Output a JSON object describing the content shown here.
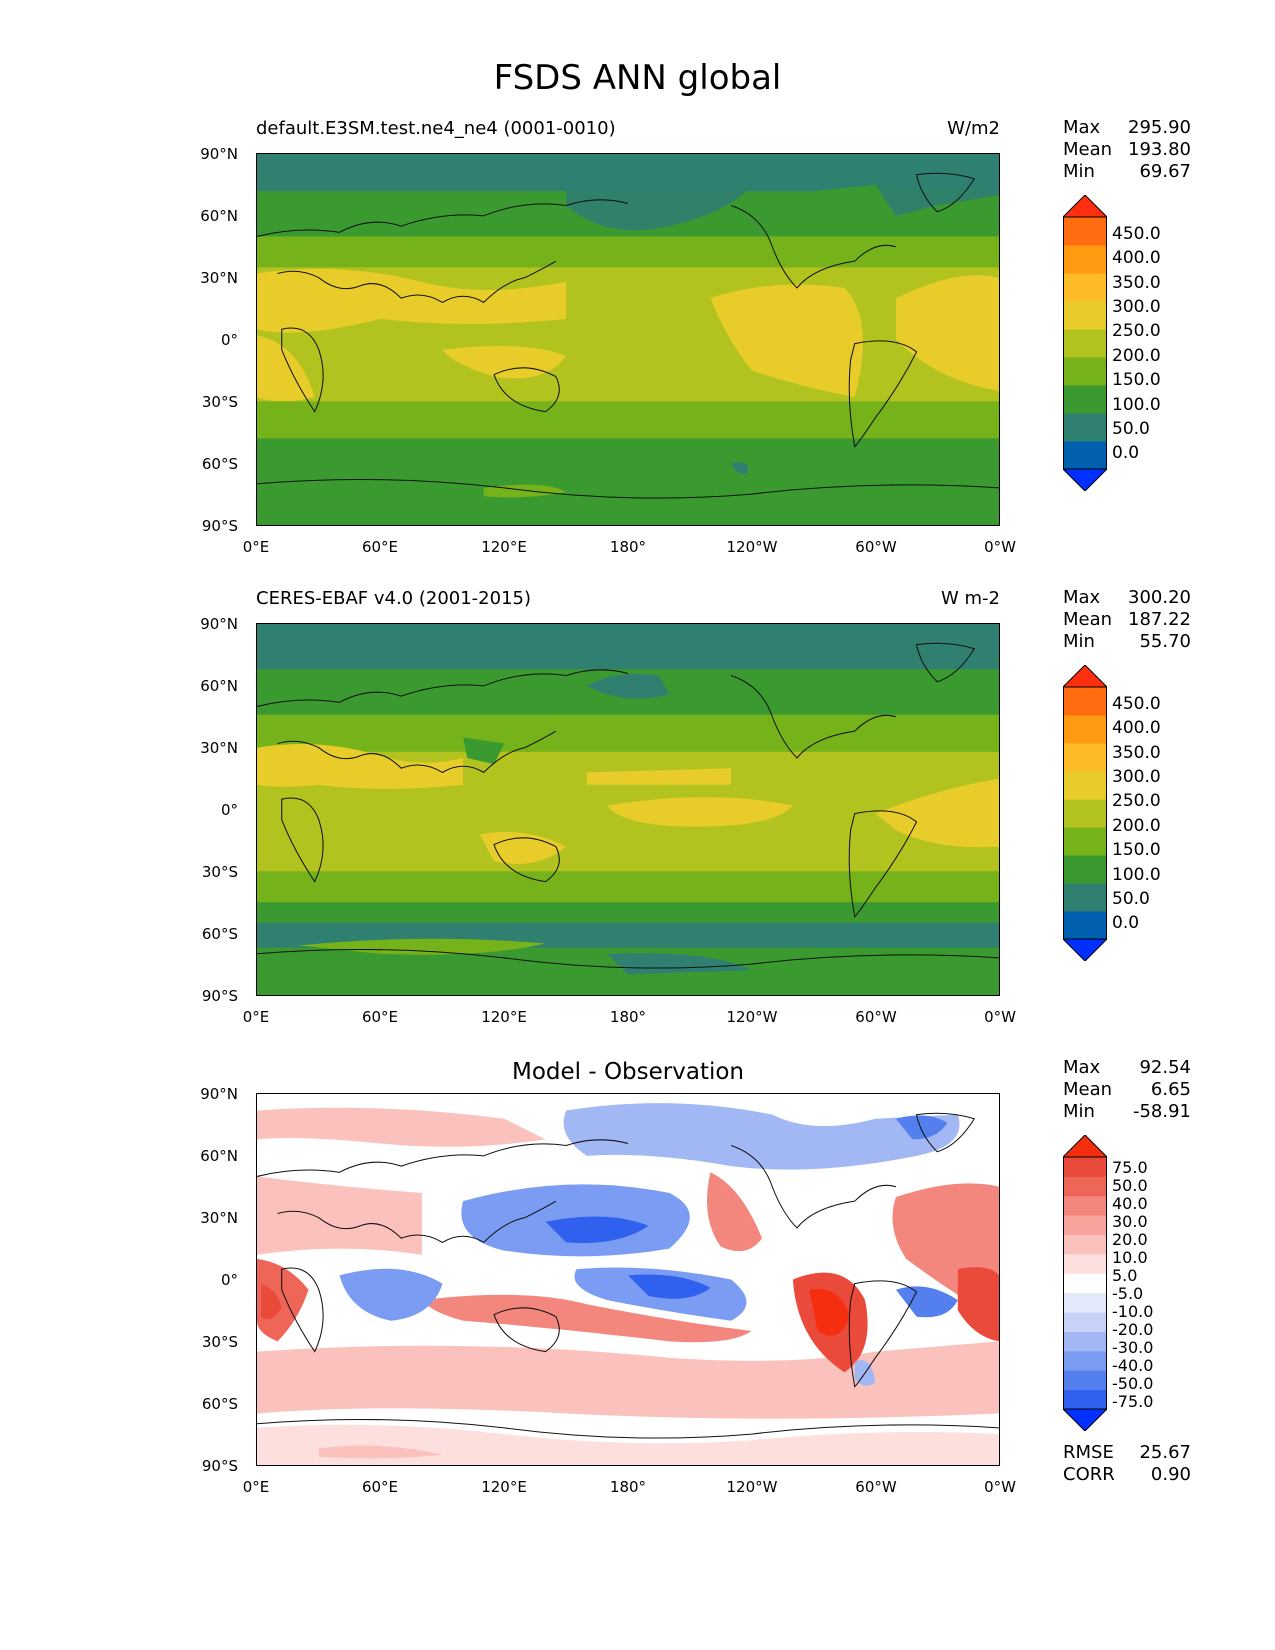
{
  "title": "FSDS ANN global",
  "lat_ticks": [
    "90°N",
    "60°N",
    "30°N",
    "0°",
    "30°S",
    "60°S",
    "90°S"
  ],
  "lon_ticks": [
    "0°E",
    "60°E",
    "120°E",
    "180°",
    "120°W",
    "60°W",
    "0°W"
  ],
  "colors": {
    "abs_levels": [
      "#0030ff",
      "#0060b0",
      "#2f8070",
      "#3a9a30",
      "#76b21a",
      "#b2c21e",
      "#e8cd2a",
      "#fdbb28",
      "#ff9b10",
      "#ff6d10",
      "#ff3010"
    ],
    "diff_levels": [
      "#0030ff",
      "#3060ee",
      "#5380ee",
      "#7a9cf2",
      "#a2b8f5",
      "#c6d2f8",
      "#e3e9fb",
      "#ffffff",
      "#fde0de",
      "#fbc2bd",
      "#f8a49d",
      "#f3867d",
      "#ee6657",
      "#ea4a3a",
      "#f52e10"
    ]
  },
  "panels": [
    {
      "left_title": "default.E3SM.test.ne4_ne4 (0001-0010)",
      "right_title": "W/m2",
      "stats": {
        "max_label": "Max",
        "max": "295.90",
        "mean_label": "Mean",
        "mean": "193.80",
        "min_label": "Min",
        "min": "69.67"
      },
      "colorbar_labels": [
        "450.0",
        "400.0",
        "350.0",
        "300.0",
        "250.0",
        "200.0",
        "150.0",
        "100.0",
        "50.0",
        "0.0"
      ]
    },
    {
      "left_title": "CERES-EBAF v4.0 (2001-2015)",
      "right_title": "W m-2",
      "stats": {
        "max_label": "Max",
        "max": "300.20",
        "mean_label": "Mean",
        "mean": "187.22",
        "min_label": "Min",
        "min": "55.70"
      },
      "colorbar_labels": [
        "450.0",
        "400.0",
        "350.0",
        "300.0",
        "250.0",
        "200.0",
        "150.0",
        "100.0",
        "50.0",
        "0.0"
      ]
    },
    {
      "center_title": "Model - Observation",
      "stats": {
        "max_label": "Max",
        "max": "92.54",
        "mean_label": "Mean",
        "mean": "6.65",
        "min_label": "Min",
        "min": "-58.91"
      },
      "colorbar_labels": [
        "75.0",
        "50.0",
        "40.0",
        "30.0",
        "20.0",
        "10.0",
        "5.0",
        "-5.0",
        "-10.0",
        "-20.0",
        "-30.0",
        "-40.0",
        "-50.0",
        "-75.0"
      ],
      "rmse_label": "RMSE",
      "rmse": "25.67",
      "corr_label": "CORR",
      "corr": "0.90"
    }
  ]
}
